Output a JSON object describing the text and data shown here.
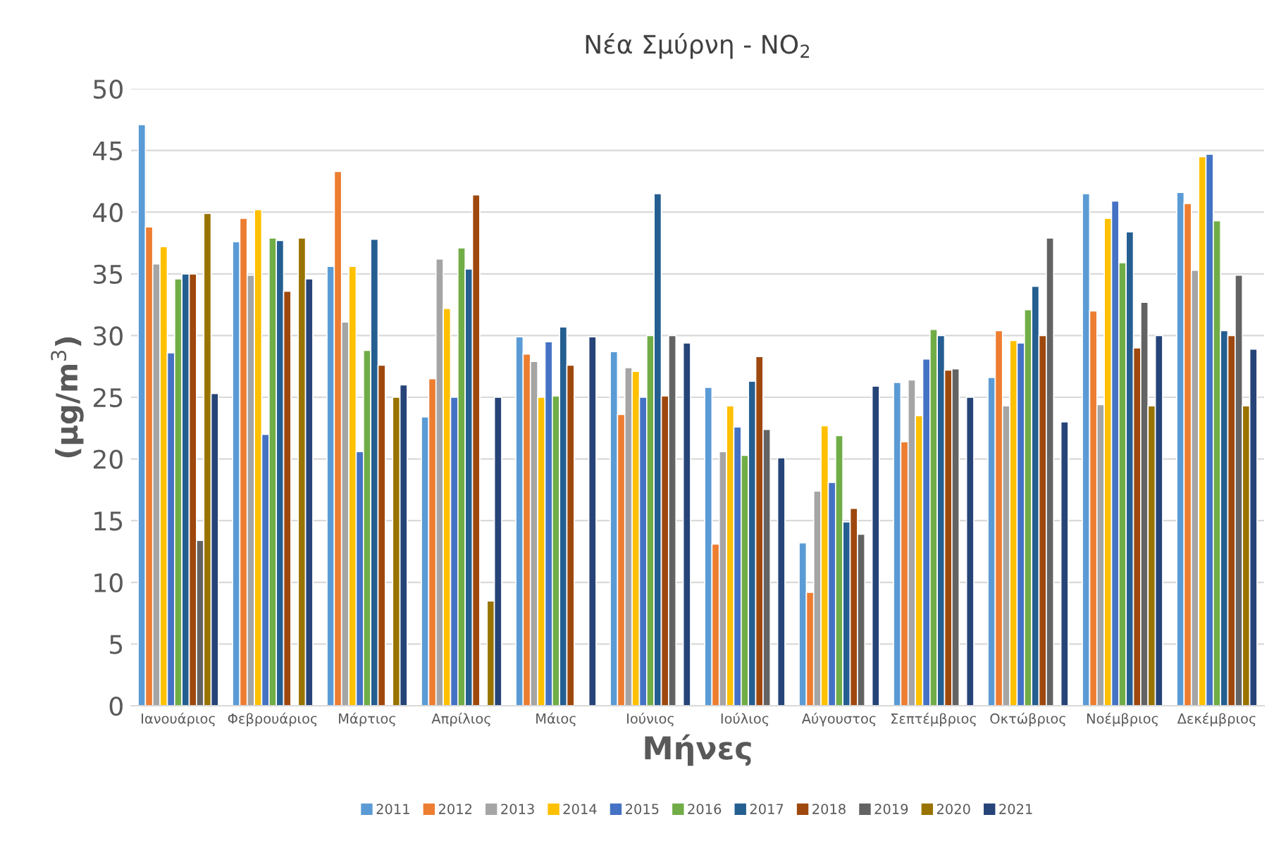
{
  "chart_data": {
    "type": "bar",
    "title": "Νέα Σμύρνη - NO$_{2}$",
    "xlabel": "Μήνες",
    "ylabel": "(μg/m$^{3}$)",
    "categories": [
      "Ιανουάριος",
      "Φεβρουάριος",
      "Μάρτιος",
      "Απρίλιος",
      "Μάιος",
      "Ιούνιος",
      "Ιούλιος",
      "Αύγουστος",
      "Σεπτέμβριος",
      "Οκτώβριος",
      "Νοέμβριος",
      "Δεκέμβριος"
    ],
    "ylim": [
      0,
      50
    ],
    "yticks": [
      0,
      5,
      10,
      15,
      20,
      25,
      30,
      35,
      40,
      45,
      50
    ],
    "grid": "y",
    "legend": "bottom",
    "series": [
      {
        "name": "2011",
        "color": "#5b9bd5",
        "values": [
          47.1,
          37.6,
          35.6,
          23.4,
          29.9,
          28.7,
          25.8,
          13.2,
          26.2,
          26.6,
          41.5,
          41.6
        ]
      },
      {
        "name": "2012",
        "color": "#ed7d31",
        "values": [
          38.8,
          39.5,
          43.3,
          26.5,
          28.5,
          23.6,
          13.1,
          9.2,
          21.4,
          30.4,
          32.0,
          40.7
        ]
      },
      {
        "name": "2013",
        "color": "#a5a5a5",
        "values": [
          35.8,
          34.9,
          31.1,
          36.2,
          27.9,
          27.4,
          20.6,
          17.4,
          26.4,
          24.3,
          24.4,
          35.3
        ]
      },
      {
        "name": "2014",
        "color": "#ffc000",
        "values": [
          37.2,
          40.2,
          35.6,
          32.2,
          25.0,
          27.1,
          24.3,
          22.7,
          23.5,
          29.6,
          39.5,
          44.5
        ]
      },
      {
        "name": "2015",
        "color": "#4472c4",
        "values": [
          28.6,
          22.0,
          20.6,
          25.0,
          29.5,
          25.0,
          22.6,
          18.1,
          28.1,
          29.4,
          40.9,
          44.7
        ]
      },
      {
        "name": "2016",
        "color": "#70ad47",
        "values": [
          34.6,
          37.9,
          28.8,
          37.1,
          25.1,
          30.0,
          20.3,
          21.9,
          30.5,
          32.1,
          35.9,
          39.3
        ]
      },
      {
        "name": "2017",
        "color": "#255e91",
        "values": [
          35.0,
          37.7,
          37.8,
          35.4,
          30.7,
          41.5,
          26.3,
          14.9,
          30.0,
          34.0,
          38.4,
          30.4
        ]
      },
      {
        "name": "2018",
        "color": "#9e480e",
        "values": [
          35.0,
          33.6,
          27.6,
          41.4,
          27.6,
          25.1,
          28.3,
          16.0,
          27.2,
          30.0,
          29.0,
          30.0
        ]
      },
      {
        "name": "2019",
        "color": "#636363",
        "values": [
          13.4,
          null,
          null,
          null,
          null,
          30.0,
          22.4,
          13.9,
          27.3,
          37.9,
          32.7,
          34.9
        ]
      },
      {
        "name": "2020",
        "color": "#997300",
        "values": [
          39.9,
          37.9,
          25.0,
          8.5,
          null,
          null,
          null,
          null,
          null,
          null,
          24.3,
          24.3
        ]
      },
      {
        "name": "2021",
        "color": "#264478",
        "values": [
          25.3,
          34.6,
          26.0,
          25.0,
          29.9,
          29.4,
          20.1,
          25.9,
          25.0,
          23.0,
          30.0,
          28.9
        ]
      }
    ]
  }
}
